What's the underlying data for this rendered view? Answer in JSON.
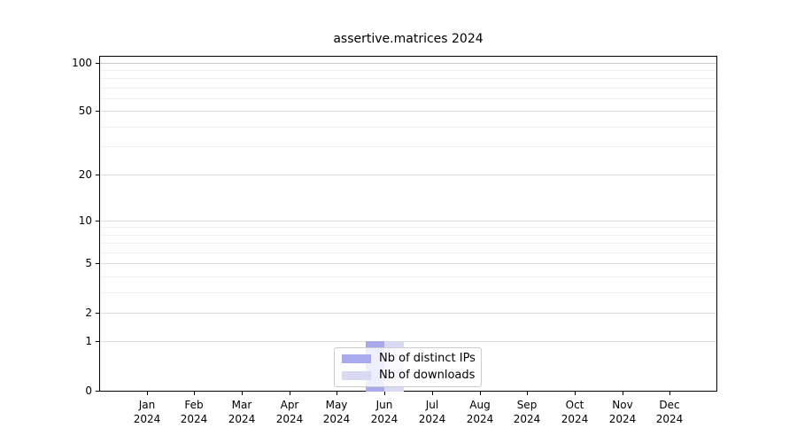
{
  "title": "assertive.matrices 2024",
  "chart_data": {
    "type": "bar",
    "title": "assertive.matrices 2024",
    "categories": [
      "Jan",
      "Feb",
      "Mar",
      "Apr",
      "May",
      "Jun",
      "Jul",
      "Aug",
      "Sep",
      "Oct",
      "Nov",
      "Dec"
    ],
    "category_year": "2024",
    "series": [
      {
        "name": "Nb of distinct IPs",
        "color": "#a9a9ee",
        "values": [
          0,
          0,
          0,
          0,
          0,
          1,
          0,
          0,
          0,
          0,
          0,
          0
        ]
      },
      {
        "name": "Nb of downloads",
        "color": "#d9d9f3",
        "values": [
          0,
          0,
          0,
          0,
          0,
          1,
          0,
          0,
          0,
          0,
          0,
          0
        ]
      }
    ],
    "y_axis": {
      "scale": "log1p",
      "ylim": [
        0,
        110
      ],
      "major_ticks": [
        0,
        1,
        2,
        5,
        10,
        20,
        50,
        100
      ],
      "minor_ticks": [
        3,
        4,
        6,
        7,
        8,
        9,
        30,
        40,
        60,
        70,
        80,
        90
      ]
    },
    "x_axis": {
      "label": "",
      "tick_year_line": true
    },
    "ylabel": "",
    "xlabel": "",
    "grid": true,
    "legend": {
      "position": "lower center",
      "entries": [
        "Nb of distinct IPs",
        "Nb of downloads"
      ]
    }
  },
  "colors": {
    "top_major_grid": "#c8c8c8",
    "major_grid": "#dcdcdc",
    "minor_grid": "#f1f1f1",
    "spine": "#000000",
    "legend_border": "#cccccc"
  }
}
